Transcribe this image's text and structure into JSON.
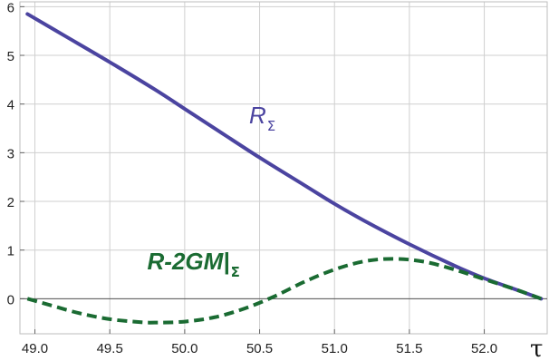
{
  "chart_data": {
    "type": "line",
    "title": "",
    "xlabel": "τ",
    "ylabel": "",
    "xlim": [
      48.9,
      52.42
    ],
    "ylim": [
      -0.72,
      6.1
    ],
    "grid": true,
    "x_ticks": [
      49.0,
      49.5,
      50.0,
      50.5,
      51.0,
      51.5,
      52.0
    ],
    "x_tick_labels": [
      "49.0",
      "49.5",
      "50.0",
      "50.5",
      "51.0",
      "51.5",
      "52.0"
    ],
    "y_ticks": [
      0,
      1,
      2,
      3,
      4,
      5,
      6
    ],
    "y_tick_labels": [
      "0",
      "1",
      "2",
      "3",
      "4",
      "5",
      "6"
    ],
    "series": [
      {
        "name": "R",
        "name_sub": "Σ",
        "style": "solid",
        "color": "#4b44a0",
        "x": [
          48.95,
          49.2,
          49.5,
          49.8,
          50.0,
          50.2,
          50.5,
          50.8,
          51.0,
          51.2,
          51.5,
          51.8,
          52.0,
          52.2,
          52.38
        ],
        "y": [
          5.85,
          5.4,
          4.86,
          4.3,
          3.9,
          3.5,
          2.9,
          2.33,
          1.95,
          1.6,
          1.12,
          0.68,
          0.42,
          0.2,
          0.0
        ],
        "label_at": [
          50.43,
          3.6
        ]
      },
      {
        "name": "R-2GM|",
        "name_sub": "Σ",
        "style": "dashed",
        "color": "#1a6b32",
        "x": [
          48.95,
          49.1,
          49.3,
          49.5,
          49.7,
          49.8,
          50.0,
          50.2,
          50.4,
          50.6,
          50.8,
          51.0,
          51.2,
          51.4,
          51.6,
          51.8,
          52.0,
          52.2,
          52.38
        ],
        "y": [
          0.0,
          -0.13,
          -0.3,
          -0.42,
          -0.48,
          -0.49,
          -0.47,
          -0.38,
          -0.2,
          0.05,
          0.35,
          0.6,
          0.77,
          0.82,
          0.76,
          0.6,
          0.4,
          0.2,
          0.0
        ],
        "label_at": [
          49.75,
          0.6
        ]
      }
    ]
  }
}
